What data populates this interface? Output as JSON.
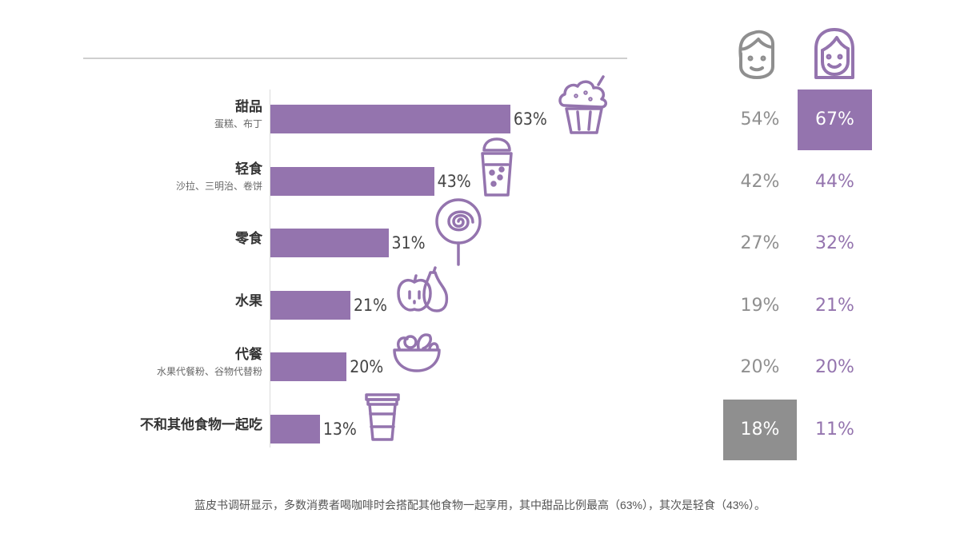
{
  "chart_data": {
    "type": "bar",
    "orientation": "horizontal",
    "categories": [
      {
        "label": "甜品",
        "sublabel": "蛋糕、布丁"
      },
      {
        "label": "轻食",
        "sublabel": "沙拉、三明治、卷饼"
      },
      {
        "label": "零食",
        "sublabel": ""
      },
      {
        "label": "水果",
        "sublabel": ""
      },
      {
        "label": "代餐",
        "sublabel": "水果代餐粉、谷物代替粉"
      },
      {
        "label": "不和其他食物一起吃",
        "sublabel": ""
      }
    ],
    "values": [
      63,
      43,
      31,
      21,
      20,
      13
    ],
    "value_labels": [
      "63%",
      "43%",
      "31%",
      "21%",
      "20%",
      "13%"
    ],
    "icons": [
      "cupcake-icon",
      "drink-glass-icon",
      "lollipop-icon",
      "apple-pear-icon",
      "salad-bowl-icon",
      "coffee-cup-icon"
    ],
    "xlim": [
      0,
      100
    ],
    "gender_split": {
      "male_icon": "male-face-icon",
      "female_icon": "female-face-icon",
      "male": [
        "54%",
        "42%",
        "27%",
        "19%",
        "20%",
        "18%"
      ],
      "female": [
        "67%",
        "44%",
        "32%",
        "21%",
        "20%",
        "11%"
      ],
      "male_highlight_index": 5,
      "female_highlight_index": 0
    },
    "colors": {
      "bar": "#9474ae",
      "male": "#8f8f8f",
      "female": "#9474ae"
    }
  },
  "caption": "蓝皮书调研显示，多数消费者喝咖啡时会搭配其他食物一起享用，其中甜品比例最高（63%），其次是轻食（43%）。"
}
